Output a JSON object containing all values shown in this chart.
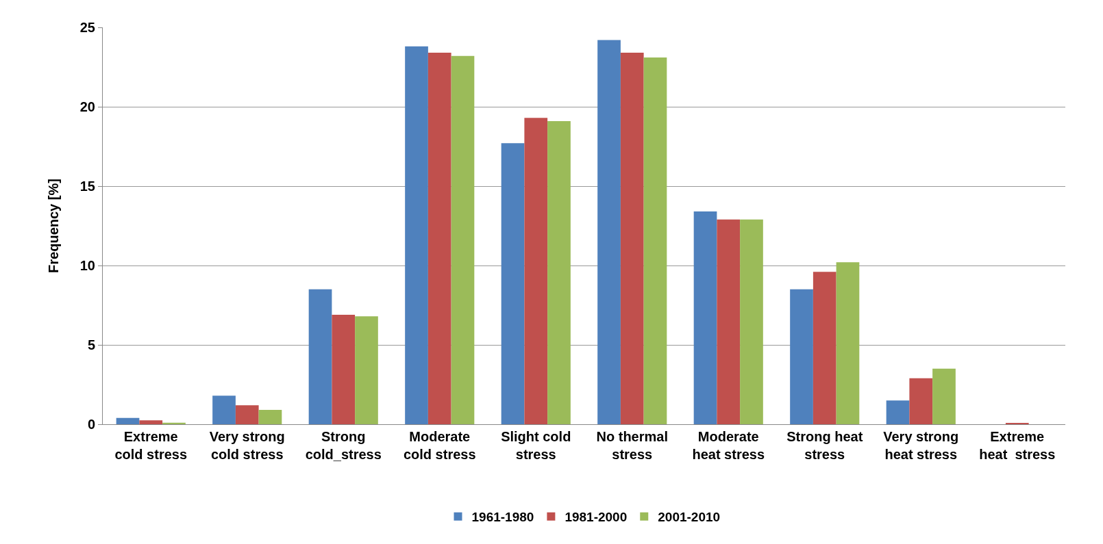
{
  "chart_data": {
    "type": "bar",
    "ylabel": "Frequency [%]",
    "categories": [
      "Extreme cold stress",
      "Very strong cold stress",
      "Strong cold_stress",
      "Moderate cold stress",
      "Slight cold stress",
      "No thermal stress",
      "Moderate heat stress",
      "Strong heat stress",
      "Very strong heat stress",
      "Extreme heat  stress"
    ],
    "series": [
      {
        "name": "1961-1980",
        "color": "#4f81bd",
        "values": [
          0.4,
          1.8,
          8.5,
          23.8,
          17.7,
          24.2,
          13.4,
          8.5,
          1.5,
          0
        ]
      },
      {
        "name": "1981-2000",
        "color": "#c0504d",
        "values": [
          0.25,
          1.2,
          6.9,
          23.4,
          19.3,
          23.4,
          12.9,
          9.6,
          2.9,
          0.05
        ]
      },
      {
        "name": "2001-2010",
        "color": "#9bbb59",
        "values": [
          0.1,
          0.9,
          6.8,
          23.2,
          19.1,
          23.1,
          12.9,
          10.2,
          3.5,
          0
        ]
      }
    ],
    "ylim": [
      0,
      25
    ],
    "yticks": [
      0,
      5,
      10,
      15,
      20,
      25
    ],
    "grid": "y",
    "legend": "bottom"
  }
}
